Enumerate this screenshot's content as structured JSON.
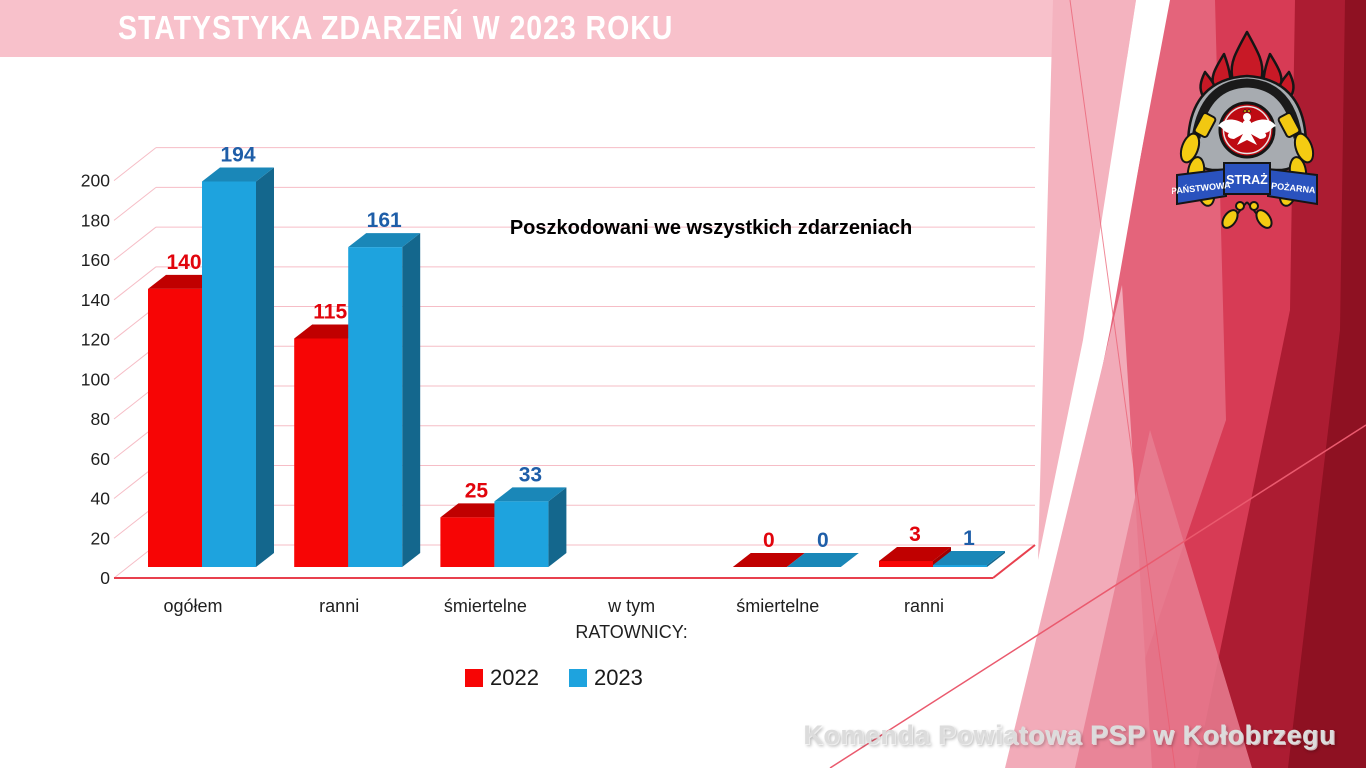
{
  "slide": {
    "title": "STATYSTYKA ZDARZEŃ W 2023 ROKU",
    "footer": "Komenda Powiatowa PSP w Kołobrzegu"
  },
  "logo": {
    "banner_left": "PAŃSTWOWA",
    "banner_center": "STRAŻ",
    "banner_right": "POŻARNA"
  },
  "colors": {
    "header_band": "#F8C1CB",
    "title_text": "#FFFFFF",
    "axis_text": "#1F1F1F",
    "footer_text": "#DCDCDC"
  },
  "chart_data": {
    "type": "bar",
    "projection": "3d",
    "title": "Poszkodowani we wszystkich zdarzeniach",
    "categories": [
      "ogółem",
      "ranni",
      "śmiertelne",
      "w tym\nRATOWNICY:",
      "śmiertelne",
      "ranni"
    ],
    "series": [
      {
        "name": "2022",
        "color": "#F70505",
        "top_color": "#C00000",
        "side_color": "#A00000",
        "label_color": "#E1040C",
        "values": [
          140,
          115,
          25,
          null,
          0,
          3
        ]
      },
      {
        "name": "2023",
        "color": "#1EA3DE",
        "top_color": "#1A87B8",
        "side_color": "#14678D",
        "label_color": "#1F5EA8",
        "values": [
          194,
          161,
          33,
          null,
          0,
          1
        ]
      }
    ],
    "ylim": [
      0,
      200
    ],
    "ytick_step": 20,
    "grid": true,
    "gridline_color": "#F6BDC6",
    "baseline_color": "#E8404E",
    "legend_position": "bottom"
  }
}
